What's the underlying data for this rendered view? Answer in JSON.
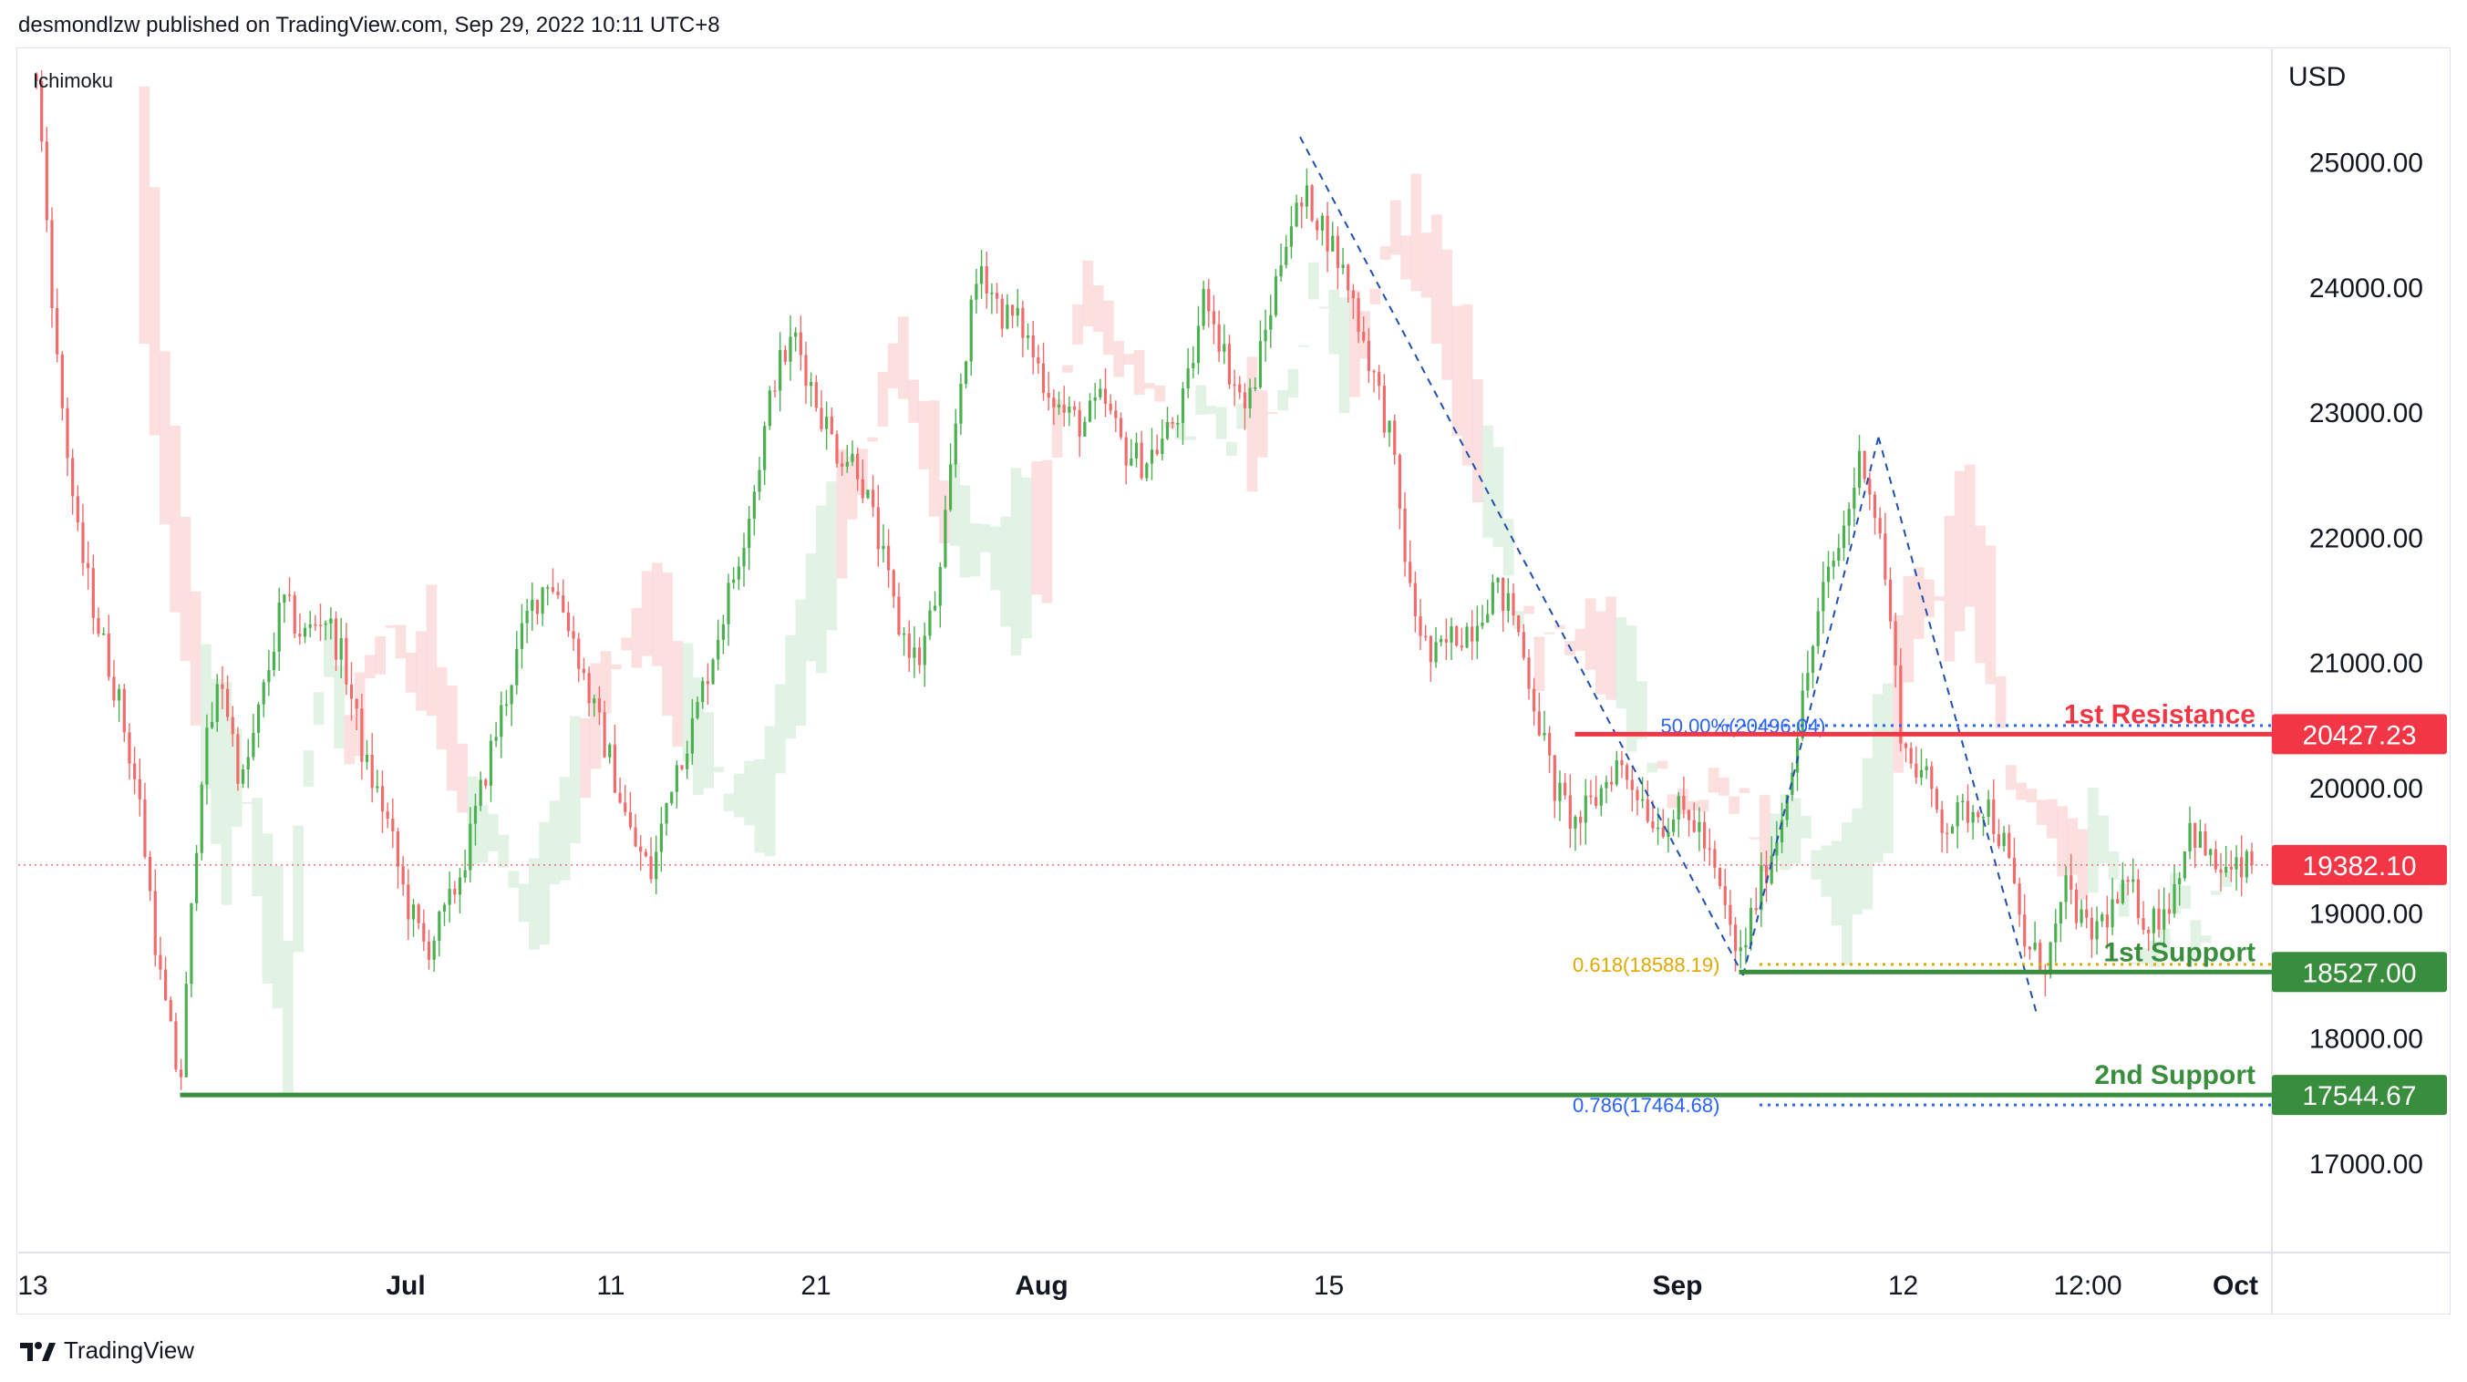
{
  "header": {
    "publisher_line": "desmondlzw published on TradingView.com, Sep 29, 2022 10:11 UTC+8"
  },
  "footer": {
    "brand": "TradingView",
    "logo_icon": "tradingview-logo-icon"
  },
  "indicator": {
    "name": "Ichimoku"
  },
  "axis": {
    "currency": "USD"
  },
  "colors": {
    "bull": "#26a69a",
    "bear": "#ef5350",
    "candle_up": "#4caf50",
    "candle_down": "#f06b6b",
    "resistance": "#f23645",
    "support": "#388e3c",
    "fib_blue": "#2962ff",
    "fib_gold": "#e0a800",
    "cloud_red": "#fbd6d4",
    "cloud_green": "#d8efdc",
    "axis_text": "#131722",
    "dashed_line": "#1e4fb0"
  },
  "chart_data": {
    "type": "candlestick",
    "symbol_unit": "USD",
    "ylim": [
      16300,
      25900
    ],
    "yticks": [
      17000,
      18000,
      19000,
      20000,
      21000,
      22000,
      23000,
      24000,
      25000
    ],
    "ytick_labels": [
      "17000.00",
      "18000.00",
      "19000.00",
      "20000.00",
      "21000.00",
      "22000.00",
      "23000.00",
      "24000.00",
      "25000.00"
    ],
    "xlim": [
      0,
      108
    ],
    "xticks": [
      {
        "label": "13",
        "x": 0
      },
      {
        "label": "Jul",
        "x": 18
      },
      {
        "label": "11",
        "x": 28
      },
      {
        "label": "21",
        "x": 38
      },
      {
        "label": "Aug",
        "x": 49
      },
      {
        "label": "15",
        "x": 63
      },
      {
        "label": "Sep",
        "x": 80
      },
      {
        "label": "12",
        "x": 91
      },
      {
        "label": "12:00",
        "x": 100
      },
      {
        "label": "Oct",
        "x": 108
      }
    ],
    "price_keypoints": [
      [
        0,
        25700
      ],
      [
        1,
        23400
      ],
      [
        2,
        22000
      ],
      [
        3,
        21300
      ],
      [
        4,
        20700
      ],
      [
        5,
        19900
      ],
      [
        6,
        18500
      ],
      [
        7,
        17600
      ],
      [
        8,
        20100
      ],
      [
        9,
        20900
      ],
      [
        10,
        20000
      ],
      [
        11,
        20700
      ],
      [
        12,
        21500
      ],
      [
        13,
        21200
      ],
      [
        14,
        21400
      ],
      [
        15,
        21000
      ],
      [
        16,
        20200
      ],
      [
        17,
        19800
      ],
      [
        18,
        19100
      ],
      [
        19,
        18700
      ],
      [
        20,
        19000
      ],
      [
        21,
        19500
      ],
      [
        22,
        20200
      ],
      [
        23,
        20800
      ],
      [
        24,
        21400
      ],
      [
        25,
        21700
      ],
      [
        26,
        21300
      ],
      [
        27,
        20700
      ],
      [
        28,
        20200
      ],
      [
        29,
        19600
      ],
      [
        30,
        19300
      ],
      [
        31,
        20100
      ],
      [
        32,
        20500
      ],
      [
        33,
        21100
      ],
      [
        34,
        21700
      ],
      [
        35,
        22400
      ],
      [
        36,
        23300
      ],
      [
        37,
        23600
      ],
      [
        38,
        23100
      ],
      [
        39,
        22700
      ],
      [
        40,
        22600
      ],
      [
        41,
        22000
      ],
      [
        42,
        21300
      ],
      [
        43,
        21000
      ],
      [
        44,
        21600
      ],
      [
        45,
        23200
      ],
      [
        46,
        24200
      ],
      [
        47,
        23800
      ],
      [
        48,
        23700
      ],
      [
        49,
        23300
      ],
      [
        50,
        23000
      ],
      [
        51,
        22900
      ],
      [
        52,
        23100
      ],
      [
        53,
        22700
      ],
      [
        54,
        22600
      ],
      [
        55,
        22800
      ],
      [
        56,
        23100
      ],
      [
        57,
        24000
      ],
      [
        58,
        23400
      ],
      [
        59,
        23000
      ],
      [
        60,
        23700
      ],
      [
        61,
        24500
      ],
      [
        62,
        24700
      ],
      [
        63,
        24400
      ],
      [
        64,
        24000
      ],
      [
        65,
        23400
      ],
      [
        66,
        22800
      ],
      [
        67,
        21500
      ],
      [
        68,
        21000
      ],
      [
        69,
        21200
      ],
      [
        70,
        21300
      ],
      [
        71,
        21600
      ],
      [
        72,
        21400
      ],
      [
        73,
        20700
      ],
      [
        74,
        20000
      ],
      [
        75,
        19700
      ],
      [
        76,
        19900
      ],
      [
        77,
        20200
      ],
      [
        78,
        20000
      ],
      [
        79,
        19700
      ],
      [
        80,
        19800
      ],
      [
        81,
        19700
      ],
      [
        82,
        19200
      ],
      [
        83,
        18600
      ],
      [
        84,
        19200
      ],
      [
        85,
        19700
      ],
      [
        86,
        20600
      ],
      [
        87,
        21500
      ],
      [
        88,
        22000
      ],
      [
        89,
        22700
      ],
      [
        90,
        21900
      ],
      [
        91,
        20300
      ],
      [
        92,
        20100
      ],
      [
        93,
        19700
      ],
      [
        94,
        19800
      ],
      [
        95,
        19900
      ],
      [
        96,
        19500
      ],
      [
        97,
        18700
      ],
      [
        98,
        18600
      ],
      [
        99,
        19200
      ],
      [
        100,
        18800
      ],
      [
        101,
        19000
      ],
      [
        102,
        19200
      ],
      [
        103,
        18900
      ],
      [
        104,
        19100
      ],
      [
        105,
        19700
      ],
      [
        106,
        19400
      ],
      [
        107,
        19300
      ],
      [
        108,
        19382
      ]
    ],
    "last_price": 19382.1,
    "last_price_label": "19382.10",
    "levels": [
      {
        "name": "1st Resistance",
        "label": "1st Resistance",
        "price": 20427.23,
        "price_label": "20427.23",
        "color": "#f23645",
        "x_start": 75
      },
      {
        "name": "1st Support",
        "label": "1st Support",
        "price": 18527.0,
        "price_label": "18527.00",
        "color": "#388e3c",
        "x_start": 83
      },
      {
        "name": "2nd Support",
        "label": "2nd Support",
        "price": 17544.67,
        "price_label": "17544.67",
        "color": "#388e3c",
        "x_start": 7
      }
    ],
    "fib_levels": [
      {
        "label": "50.00%(20496.04)",
        "price": 20496.04,
        "color": "#2962ff",
        "x_text": 79
      },
      {
        "label": "0.618(18588.19)",
        "price": 18588.19,
        "color": "#e0a800",
        "x_text": 74
      },
      {
        "label": "0.786(17464.68)",
        "price": 17464.68,
        "color": "#2962ff",
        "x_text": 74
      }
    ],
    "swing_lines": [
      {
        "from": [
          61.6,
          25200
        ],
        "to": [
          83.2,
          18500
        ]
      },
      {
        "from": [
          83.2,
          18500
        ],
        "to": [
          89.8,
          22800
        ]
      },
      {
        "from": [
          89.8,
          22800
        ],
        "to": [
          97.5,
          18200
        ]
      }
    ]
  }
}
